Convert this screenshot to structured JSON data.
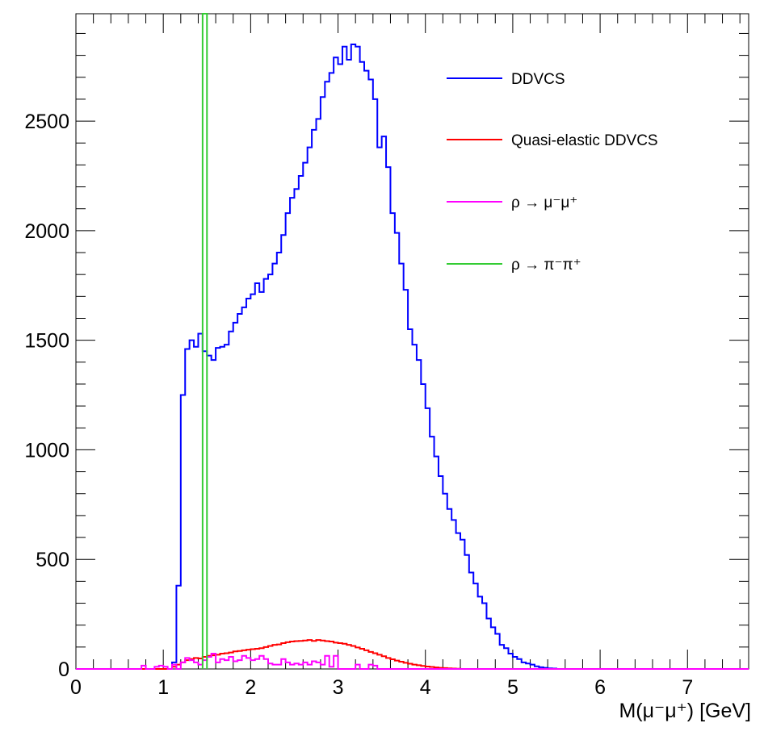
{
  "chart_data": {
    "type": "histogram",
    "title": "",
    "xlabel": "M(μ⁻μ⁺) [GeV]",
    "ylabel": "",
    "xlim": [
      0,
      7.7
    ],
    "ylim": [
      0,
      2990
    ],
    "bin_width": 0.05,
    "x_ticks": [
      "0",
      "1",
      "2",
      "3",
      "4",
      "5",
      "6",
      "7"
    ],
    "y_ticks": [
      "0",
      "500",
      "1000",
      "1500",
      "2000",
      "2500"
    ],
    "legend_position": "top-right",
    "series": [
      {
        "name": "DDVCS",
        "color": "#0000ff",
        "x_start": 1.1,
        "values": [
          30,
          380,
          1250,
          1460,
          1500,
          1470,
          1530,
          1450,
          1430,
          1410,
          1465,
          1470,
          1480,
          1540,
          1580,
          1620,
          1650,
          1690,
          1710,
          1760,
          1720,
          1780,
          1800,
          1850,
          1900,
          1980,
          2080,
          2150,
          2190,
          2250,
          2310,
          2380,
          2460,
          2510,
          2610,
          2680,
          2720,
          2790,
          2760,
          2840,
          2780,
          2850,
          2840,
          2770,
          2730,
          2690,
          2600,
          2380,
          2430,
          2290,
          2080,
          1990,
          1850,
          1730,
          1550,
          1480,
          1410,
          1300,
          1190,
          1060,
          970,
          880,
          800,
          730,
          680,
          620,
          590,
          520,
          440,
          390,
          330,
          300,
          230,
          190,
          160,
          110,
          95,
          70,
          55,
          45,
          30,
          25,
          20,
          12,
          8,
          5,
          3,
          2
        ]
      },
      {
        "name": "Quasi-elastic DDVCS",
        "color": "#ff0000",
        "x_start": 1.1,
        "values": [
          10,
          20,
          30,
          40,
          45,
          50,
          48,
          55,
          60,
          62,
          65,
          70,
          72,
          75,
          80,
          82,
          85,
          88,
          90,
          92,
          95,
          100,
          105,
          110,
          112,
          118,
          122,
          125,
          127,
          128,
          130,
          132,
          128,
          132,
          130,
          127,
          125,
          120,
          118,
          115,
          110,
          105,
          98,
          92,
          85,
          78,
          72,
          65,
          58,
          50,
          44,
          38,
          33,
          28,
          24,
          20,
          17,
          14,
          11,
          9,
          7,
          5,
          4,
          3,
          2,
          1
        ]
      },
      {
        "name": "ρ → μ⁻μ⁺",
        "color": "#ff00ff",
        "x_start": 0.7,
        "values": [
          0,
          15,
          0,
          0,
          10,
          15,
          10,
          0,
          20,
          0,
          30,
          50,
          40,
          30,
          20,
          40,
          55,
          70,
          30,
          45,
          40,
          55,
          35,
          40,
          60,
          50,
          40,
          45,
          60,
          45,
          25,
          20,
          20,
          45,
          30,
          20,
          25,
          20,
          30,
          20,
          35,
          30,
          20,
          60,
          10,
          60,
          0,
          0,
          0,
          0,
          20,
          0,
          0,
          20,
          15
        ]
      },
      {
        "name": "ρ → π⁻π⁺",
        "color": "#33cc33",
        "x_start": 1.45,
        "values": [
          2990
        ]
      }
    ]
  }
}
